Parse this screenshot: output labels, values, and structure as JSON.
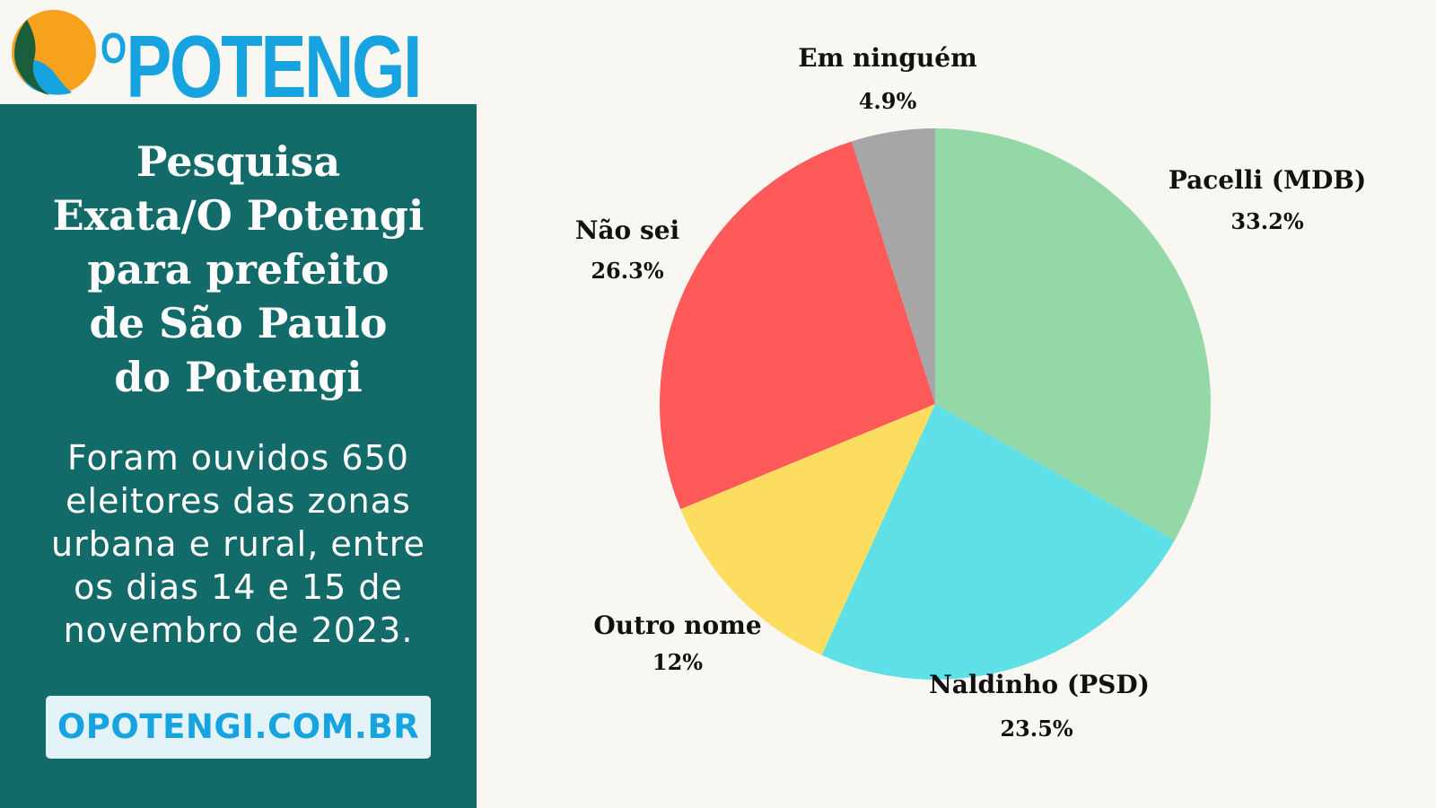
{
  "brand": {
    "name": "OPOTENGI",
    "logo_small": "O",
    "logo_large": "POTENGI",
    "icon": "globe-logo-icon",
    "colors": {
      "blue": "#16a3df",
      "orange": "#f6a21c",
      "green": "#1b5e3b",
      "panel": "#136b69"
    }
  },
  "panel": {
    "title_lines": [
      "Pesquisa",
      "Exata/O Potengi",
      "para prefeito",
      "de São Paulo",
      "do Potengi"
    ],
    "description_lines": [
      "Foram ouvidos 650",
      "eleitores das zonas",
      "urbana e rural, entre",
      "os dias 14 e 15 de",
      "novembro de 2023."
    ],
    "site_label": "OPOTENGI.COM.BR"
  },
  "chart_data": {
    "type": "pie",
    "title": "",
    "start_angle": "12 o'clock, clockwise",
    "slices": [
      {
        "label": "Pacelli (MDB)",
        "value": 33.2,
        "value_label": "33.2%",
        "color": "#95d8a8"
      },
      {
        "label": "Naldinho (PSD)",
        "value": 23.5,
        "value_label": "23.5%",
        "color": "#5ee0e6"
      },
      {
        "label": "Outro nome",
        "value": 12,
        "value_label": "12%",
        "color": "#fddd5f"
      },
      {
        "label": "Não sei",
        "value": 26.3,
        "value_label": "26.3%",
        "color": "#fe5a5a"
      },
      {
        "label": "Em ninguém",
        "value": 4.9,
        "value_label": "4.9%",
        "color": "#a6a6a6"
      }
    ]
  }
}
